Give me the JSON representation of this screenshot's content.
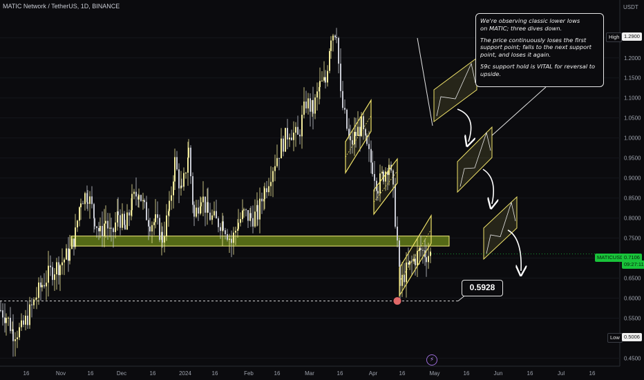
{
  "header": {
    "symbol_title": "MATIC Network / TetherUS, 1D, BINANCE",
    "currency": "USDT"
  },
  "annotation": {
    "line1": "We're observing classic lower lows",
    "line2": "on MATIC; three dives down.",
    "line3": "The price continuously loses the first",
    "line4": "support point; falls to the next support",
    "line5": "point, and loses it again.",
    "line6": "59c support hold is VITAL for reversal to upside."
  },
  "price_callout": "0.5928",
  "price_scale_tags": {
    "high_label": "High",
    "high_value": "1.2900",
    "low_label": "Low",
    "low_value": "0.5006",
    "symbol_label": "MATICUSDT",
    "last_price": "0.7106",
    "countdown": "09:27:11"
  },
  "event_icon": "lightning-icon",
  "colors": {
    "background": "#0b0b0e",
    "candle_up": "#f2eb9c",
    "candle_down": "#c9cbd4",
    "zone_fill": "#6e8a1a",
    "zone_border": "#f4ee7a",
    "channel": "#f0e36a",
    "support_dot": "#e06868",
    "last_price_tag": "#19c43a"
  },
  "chart_data": {
    "type": "candlestick",
    "ylim": [
      0.43,
      1.31
    ],
    "y_ticks": [
      "1.2500",
      "1.2000",
      "1.1500",
      "1.1000",
      "1.0500",
      "1.0000",
      "0.9500",
      "0.9000",
      "0.8500",
      "0.8000",
      "0.7500",
      "0.7000",
      "0.6500",
      "0.6000",
      "0.5500",
      "0.4500"
    ],
    "x_ticks": [
      "16",
      "Nov",
      "16",
      "Dec",
      "16",
      "2024",
      "16",
      "Feb",
      "16",
      "Mar",
      "16",
      "Apr",
      "16",
      "May",
      "16",
      "Jun",
      "16",
      "Jul",
      "16"
    ],
    "support_zone": [
      0.73,
      0.755
    ],
    "support_line": 0.5928,
    "recent_high": 1.29,
    "recent_low": 0.5006,
    "last_price": 0.7106,
    "close_path": [
      {
        "x_idx": 0,
        "y": 0.57
      },
      {
        "x_idx": 8,
        "y": 0.555
      },
      {
        "x_idx": 18,
        "y": 0.515
      },
      {
        "x_idx": 30,
        "y": 0.52
      },
      {
        "x_idx": 42,
        "y": 0.565
      },
      {
        "x_idx": 52,
        "y": 0.605
      },
      {
        "x_idx": 60,
        "y": 0.635
      },
      {
        "x_idx": 72,
        "y": 0.665
      },
      {
        "x_idx": 86,
        "y": 0.685
      },
      {
        "x_idx": 100,
        "y": 0.715
      },
      {
        "x_idx": 108,
        "y": 0.76
      },
      {
        "x_idx": 116,
        "y": 0.85
      },
      {
        "x_idx": 126,
        "y": 0.86
      },
      {
        "x_idx": 136,
        "y": 0.8
      },
      {
        "x_idx": 144,
        "y": 0.76
      },
      {
        "x_idx": 152,
        "y": 0.795
      },
      {
        "x_idx": 160,
        "y": 0.75
      },
      {
        "x_idx": 170,
        "y": 0.81
      },
      {
        "x_idx": 180,
        "y": 0.77
      },
      {
        "x_idx": 190,
        "y": 0.84
      },
      {
        "x_idx": 200,
        "y": 0.87
      },
      {
        "x_idx": 208,
        "y": 0.82
      },
      {
        "x_idx": 216,
        "y": 0.79
      },
      {
        "x_idx": 224,
        "y": 0.79
      },
      {
        "x_idx": 234,
        "y": 0.75
      },
      {
        "x_idx": 244,
        "y": 0.82
      },
      {
        "x_idx": 252,
        "y": 0.94
      },
      {
        "x_idx": 262,
        "y": 0.86
      },
      {
        "x_idx": 272,
        "y": 0.97
      },
      {
        "x_idx": 280,
        "y": 0.8
      },
      {
        "x_idx": 290,
        "y": 0.86
      },
      {
        "x_idx": 300,
        "y": 0.81
      },
      {
        "x_idx": 312,
        "y": 0.79
      },
      {
        "x_idx": 322,
        "y": 0.79
      },
      {
        "x_idx": 334,
        "y": 0.74
      },
      {
        "x_idx": 344,
        "y": 0.79
      },
      {
        "x_idx": 352,
        "y": 0.81
      },
      {
        "x_idx": 362,
        "y": 0.8
      },
      {
        "x_idx": 372,
        "y": 0.81
      },
      {
        "x_idx": 382,
        "y": 0.87
      },
      {
        "x_idx": 394,
        "y": 0.93
      },
      {
        "x_idx": 406,
        "y": 0.98
      },
      {
        "x_idx": 418,
        "y": 1.02
      },
      {
        "x_idx": 430,
        "y": 1.0
      },
      {
        "x_idx": 442,
        "y": 1.09
      },
      {
        "x_idx": 452,
        "y": 1.07
      },
      {
        "x_idx": 462,
        "y": 1.13
      },
      {
        "x_idx": 470,
        "y": 1.14
      },
      {
        "x_idx": 478,
        "y": 1.26
      },
      {
        "x_idx": 486,
        "y": 1.27
      },
      {
        "x_idx": 492,
        "y": 1.1
      },
      {
        "x_idx": 498,
        "y": 1.05
      },
      {
        "x_idx": 506,
        "y": 0.98
      },
      {
        "x_idx": 514,
        "y": 1.01
      },
      {
        "x_idx": 522,
        "y": 1.03
      },
      {
        "x_idx": 530,
        "y": 0.97
      },
      {
        "x_idx": 538,
        "y": 0.93
      },
      {
        "x_idx": 546,
        "y": 0.88
      },
      {
        "x_idx": 554,
        "y": 0.91
      },
      {
        "x_idx": 562,
        "y": 0.94
      },
      {
        "x_idx": 568,
        "y": 0.86
      },
      {
        "x_idx": 574,
        "y": 0.74
      },
      {
        "x_idx": 578,
        "y": 0.63
      },
      {
        "x_idx": 584,
        "y": 0.66
      },
      {
        "x_idx": 592,
        "y": 0.68
      },
      {
        "x_idx": 600,
        "y": 0.7
      },
      {
        "x_idx": 608,
        "y": 0.72
      },
      {
        "x_idx": 616,
        "y": 0.71
      },
      {
        "x_idx": 624,
        "y": 0.71
      }
    ]
  }
}
